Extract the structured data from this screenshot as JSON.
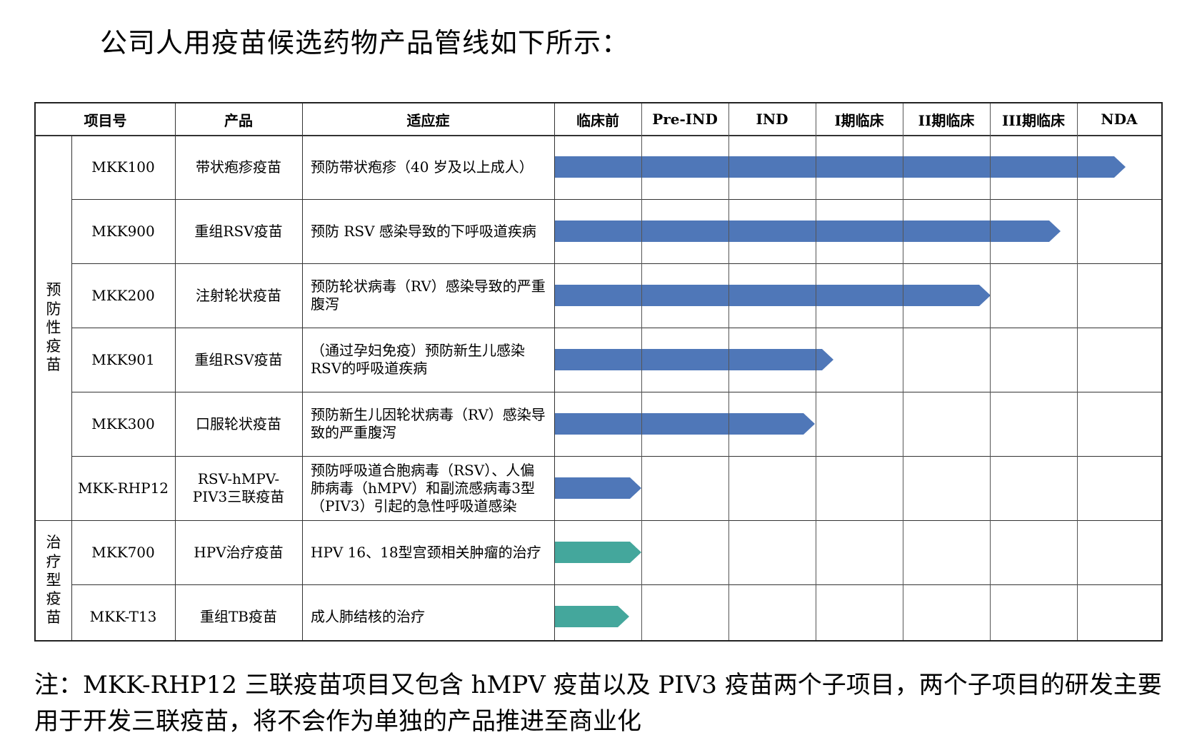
{
  "heading": "公司人用疫苗候选药物产品管线如下所示：",
  "headers": {
    "project": "项目号",
    "product": "产品",
    "indication": "适应症",
    "stages": [
      "临床前",
      "Pre-IND",
      "IND",
      "I期临床",
      "II期临床",
      "III期临床",
      "NDA"
    ]
  },
  "categories": [
    {
      "label": "预\n防\n性\n疫\n苗"
    },
    {
      "label": "治\n疗\n型\n疫\n苗"
    }
  ],
  "rows": [
    {
      "project": "MKK100",
      "product": "带状疱疹疫苗",
      "indication": "预防带状疱疹（40 岁及以上成人）",
      "progress_stages": 6.55,
      "color": "#4f77b8"
    },
    {
      "project": "MKK900",
      "product": "重组RSV疫苗",
      "indication": "预防 RSV 感染导致的下呼吸道疾病",
      "progress_stages": 5.8,
      "color": "#4f77b8"
    },
    {
      "project": "MKK200",
      "product": "注射轮状疫苗",
      "indication": "预防轮状病毒（RV）感染导致的严重腹泻",
      "progress_stages": 5.0,
      "color": "#4f77b8"
    },
    {
      "project": "MKK901",
      "product": "重组RSV疫苗",
      "indication": "（通过孕妇免疫）预防新生儿感染RSV的呼吸道疾病",
      "progress_stages": 3.2,
      "color": "#4f77b8"
    },
    {
      "project": "MKK300",
      "product": "口服轮状疫苗",
      "indication": "预防新生儿因轮状病毒（RV）感染导致的严重腹泻",
      "progress_stages": 2.98,
      "color": "#4f77b8"
    },
    {
      "project": "MKK-RHP12",
      "product": "RSV-hMPV-PIV3三联疫苗",
      "indication": "预防呼吸道合胞病毒（RSV）、人偏肺病毒（hMPV）和副流感病毒3型（PIV3）引起的急性呼吸道感染",
      "progress_stages": 0.99,
      "color": "#4f77b8"
    },
    {
      "project": "MKK700",
      "product": "HPV治疗疫苗",
      "indication": "HPV 16、18型宫颈相关肿瘤的治疗",
      "progress_stages": 0.99,
      "color": "#44a79c"
    },
    {
      "project": "MKK-T13",
      "product": "重组TB疫苗",
      "indication": "成人肺结核的治疗",
      "progress_stages": 0.85,
      "color": "#44a79c"
    }
  ],
  "note": "注：MKK-RHP12 三联疫苗项目又包含 hMPV 疫苗以及 PIV3 疫苗两个子项目，两个子项目的研发主要用于开发三联疫苗，将不会作为单独的产品推进至商业化"
}
